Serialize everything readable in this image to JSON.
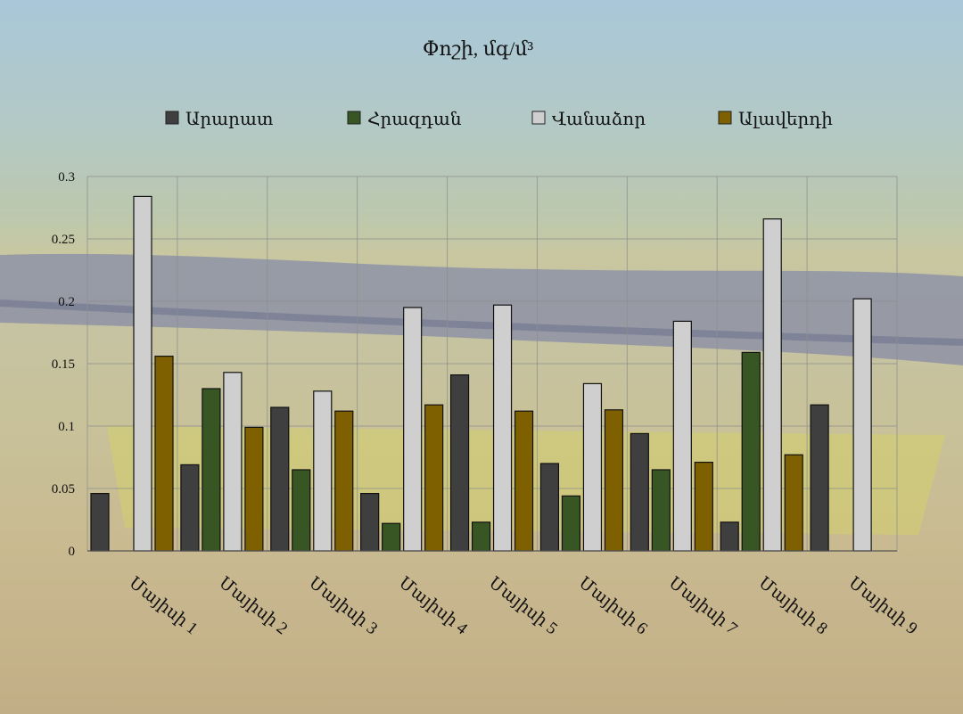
{
  "chart_data": {
    "type": "bar",
    "title": "Փոշի, մգ/մ³",
    "categories": [
      "Մայիսի 1",
      "Մայիսի 2",
      "Մայիսի 3",
      "Մայիսի 4",
      "Մայիսի 5",
      "Մայիսի 6",
      "Մայիսի 7",
      "Մայիսի 8",
      "Մայիսի 9"
    ],
    "series": [
      {
        "name": "Արարատ",
        "color": "#3f3f3f",
        "values": [
          0.046,
          0.069,
          0.115,
          0.046,
          0.141,
          0.07,
          0.094,
          0.023,
          0.117
        ]
      },
      {
        "name": "Հրազդան",
        "color": "#375623",
        "values": [
          0,
          0.13,
          0.065,
          0.022,
          0.023,
          0.044,
          0.065,
          0.159,
          0
        ]
      },
      {
        "name": "Վանաձոր",
        "color": "#cfcfcf",
        "values": [
          0.284,
          0.143,
          0.128,
          0.195,
          0.197,
          0.134,
          0.184,
          0.266,
          0.202
        ]
      },
      {
        "name": "Ալավերդի",
        "color": "#7f6000",
        "values": [
          0.156,
          0.099,
          0.112,
          0.117,
          0.112,
          0.113,
          0.071,
          0.077,
          0
        ]
      }
    ],
    "yticks": [
      "0",
      "0.05",
      "0.1",
      "0.15",
      "0.2",
      "0.25",
      "0.3"
    ],
    "ylim": [
      0,
      0.3
    ],
    "grid": true,
    "legend": "top"
  }
}
